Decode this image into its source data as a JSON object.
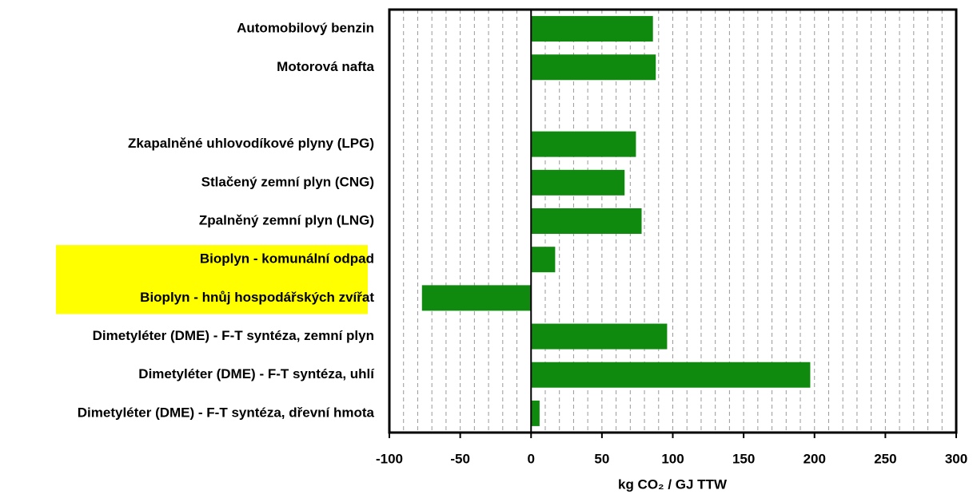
{
  "chart_data": {
    "type": "bar",
    "orientation": "horizontal",
    "categories": [
      "Automobilový benzin",
      "Motorová nafta",
      null,
      "Zkapalněné uhlovodíkové plyny (LPG)",
      "Stlačený zemní plyn (CNG)",
      "Zpalněný zemní plyn (LNG)",
      "Bioplyn -  komunální odpad",
      "Bioplyn - hnůj hospodářských zvířat",
      "Dimetyléter (DME) - F-T syntéza, zemní plyn",
      "Dimetyléter (DME) - F-T syntéza, uhlí",
      "Dimetyléter (DME) - F-T syntéza, dřevní hmota"
    ],
    "values": [
      86,
      88,
      null,
      74,
      66,
      78,
      17,
      -77,
      96,
      197,
      6
    ],
    "color": "#0f8a0f",
    "highlight_categories": [
      6,
      7
    ],
    "highlight_color": "#ffff00",
    "xlabel": "kg CO₂ / GJ TTW",
    "xlim": [
      -100,
      300
    ],
    "xticks": [
      -100,
      -50,
      0,
      50,
      100,
      150,
      200,
      250,
      300
    ],
    "grid": true,
    "minor_xticks": [
      -90,
      -80,
      -70,
      -60,
      -40,
      -30,
      -20,
      -10,
      10,
      20,
      30,
      40,
      60,
      70,
      80,
      90,
      110,
      120,
      130,
      140,
      160,
      170,
      180,
      190,
      210,
      220,
      230,
      240,
      260,
      270,
      280,
      290
    ]
  }
}
